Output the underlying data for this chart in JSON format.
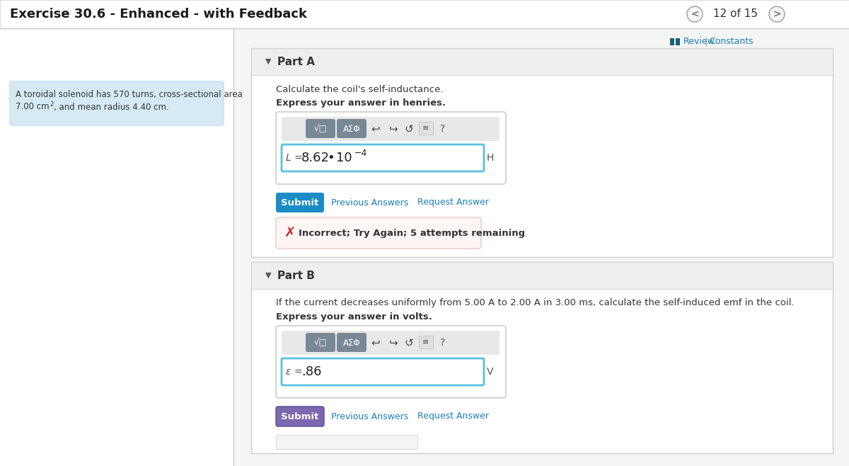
{
  "title": "Exercise 30.6 - Enhanced - with Feedback",
  "page_info": "12 of 15",
  "bg_color": "#eeeeee",
  "white": "#ffffff",
  "sidebar_bg": "#d6eaf5",
  "review_link": "Review",
  "constants_link": "Constants",
  "partA_label": "Part A",
  "partA_instruction": "Calculate the coil's self-inductance.",
  "partA_express": "Express your answer in henries.",
  "partA_unit": "H",
  "partA_variable": "L =",
  "partB_label": "Part B",
  "partB_instruction": "If the current decreases uniformly from 5.00 A to 2.00 A in 3.00 ms, calculate the self-induced emf in the coil.",
  "partB_express": "Express your answer in volts.",
  "partB_answer": ".86",
  "partB_unit": "V",
  "partB_variable": "ε =",
  "submit_color_a": "#1a8dc4",
  "submit_color_b": "#7b68b0",
  "error_text": "Incorrect; Try Again; 5 attempts remaining",
  "toolbar_bg": "#7a8896",
  "toolbar_light": "#e8e8e8",
  "input_border": "#5bc0de",
  "link_color": "#1a7fbc",
  "header_bg": "#f0f0f0",
  "sidebar_border": "#c5dde8",
  "nav_circle_color": "#f5f5f5",
  "nav_circle_edge": "#aaaaaa",
  "review_icon_color": "#1a5f7a"
}
